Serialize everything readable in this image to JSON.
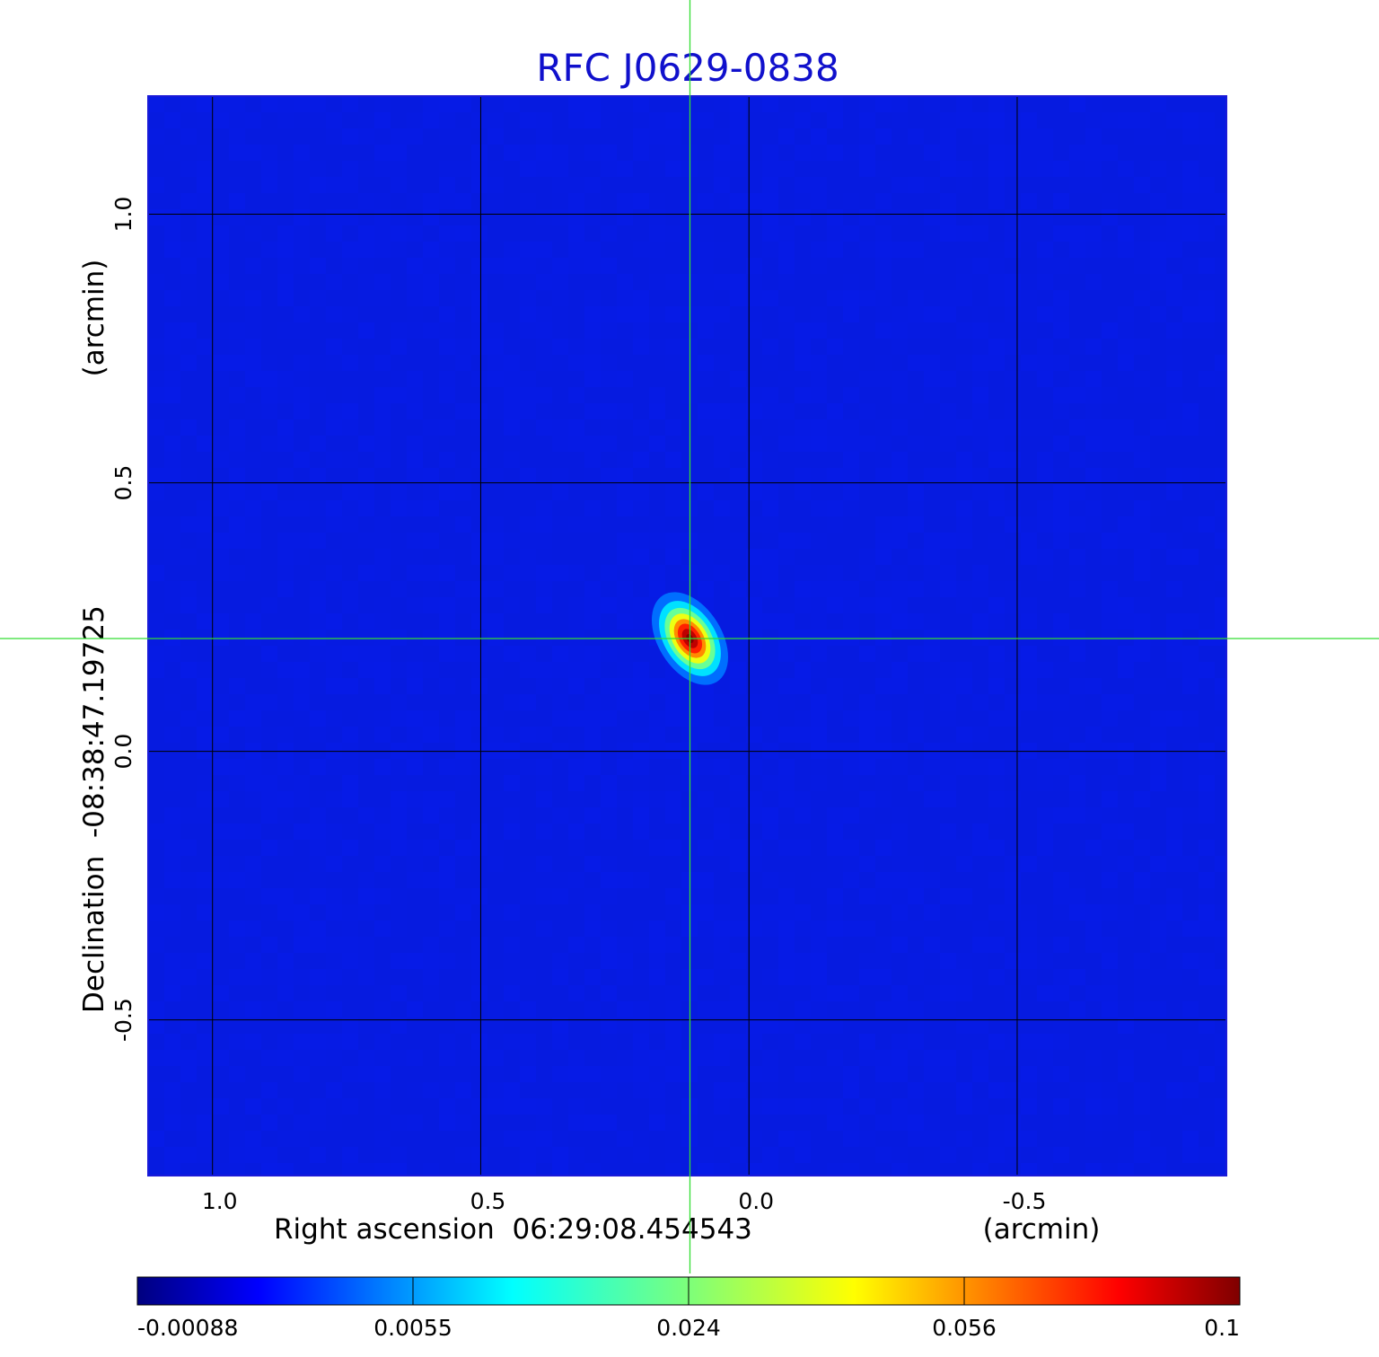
{
  "chart_data": {
    "type": "heatmap",
    "title": "RFC J0629-0838",
    "xlabel": "Right ascension  06:29:08.454543",
    "xunit": "(arcmin)",
    "ylabel": "Declination  -08:38:47.19725",
    "yunit": "(arcmin)",
    "xlim": [
      1.12,
      -0.89
    ],
    "ylim": [
      -0.79,
      1.22
    ],
    "x_ticks": [
      {
        "value": 1.0,
        "label": "1.0"
      },
      {
        "value": 0.5,
        "label": "0.5"
      },
      {
        "value": 0.0,
        "label": "0.0"
      },
      {
        "value": -0.5,
        "label": "-0.5"
      }
    ],
    "y_ticks": [
      {
        "value": 1.0,
        "label": "1.0"
      },
      {
        "value": 0.5,
        "label": "0.5"
      },
      {
        "value": 0.0,
        "label": "0.0"
      },
      {
        "value": -0.5,
        "label": "-0.5"
      }
    ],
    "grid": true,
    "colormap": "jet",
    "colorbar": {
      "position": "bottom",
      "ticks": [
        "-0.00088",
        "0.0055",
        "0.024",
        "0.056",
        "0.1"
      ],
      "min": -0.00088,
      "max": 0.1
    },
    "crosshair": {
      "x": 0.11,
      "y": 0.21,
      "color": "#33dd33"
    },
    "source": {
      "x": 0.11,
      "y": 0.21,
      "peak": 0.1,
      "major_fwhm": 0.1,
      "minor_fwhm": 0.05,
      "orientation": "elongated from upper-left to lower-right"
    },
    "background_level": 0.0,
    "colors": {
      "title": "#1010cc",
      "axis_frame": "#1a1ad8",
      "grid": "#000000",
      "text": "#000000"
    }
  }
}
